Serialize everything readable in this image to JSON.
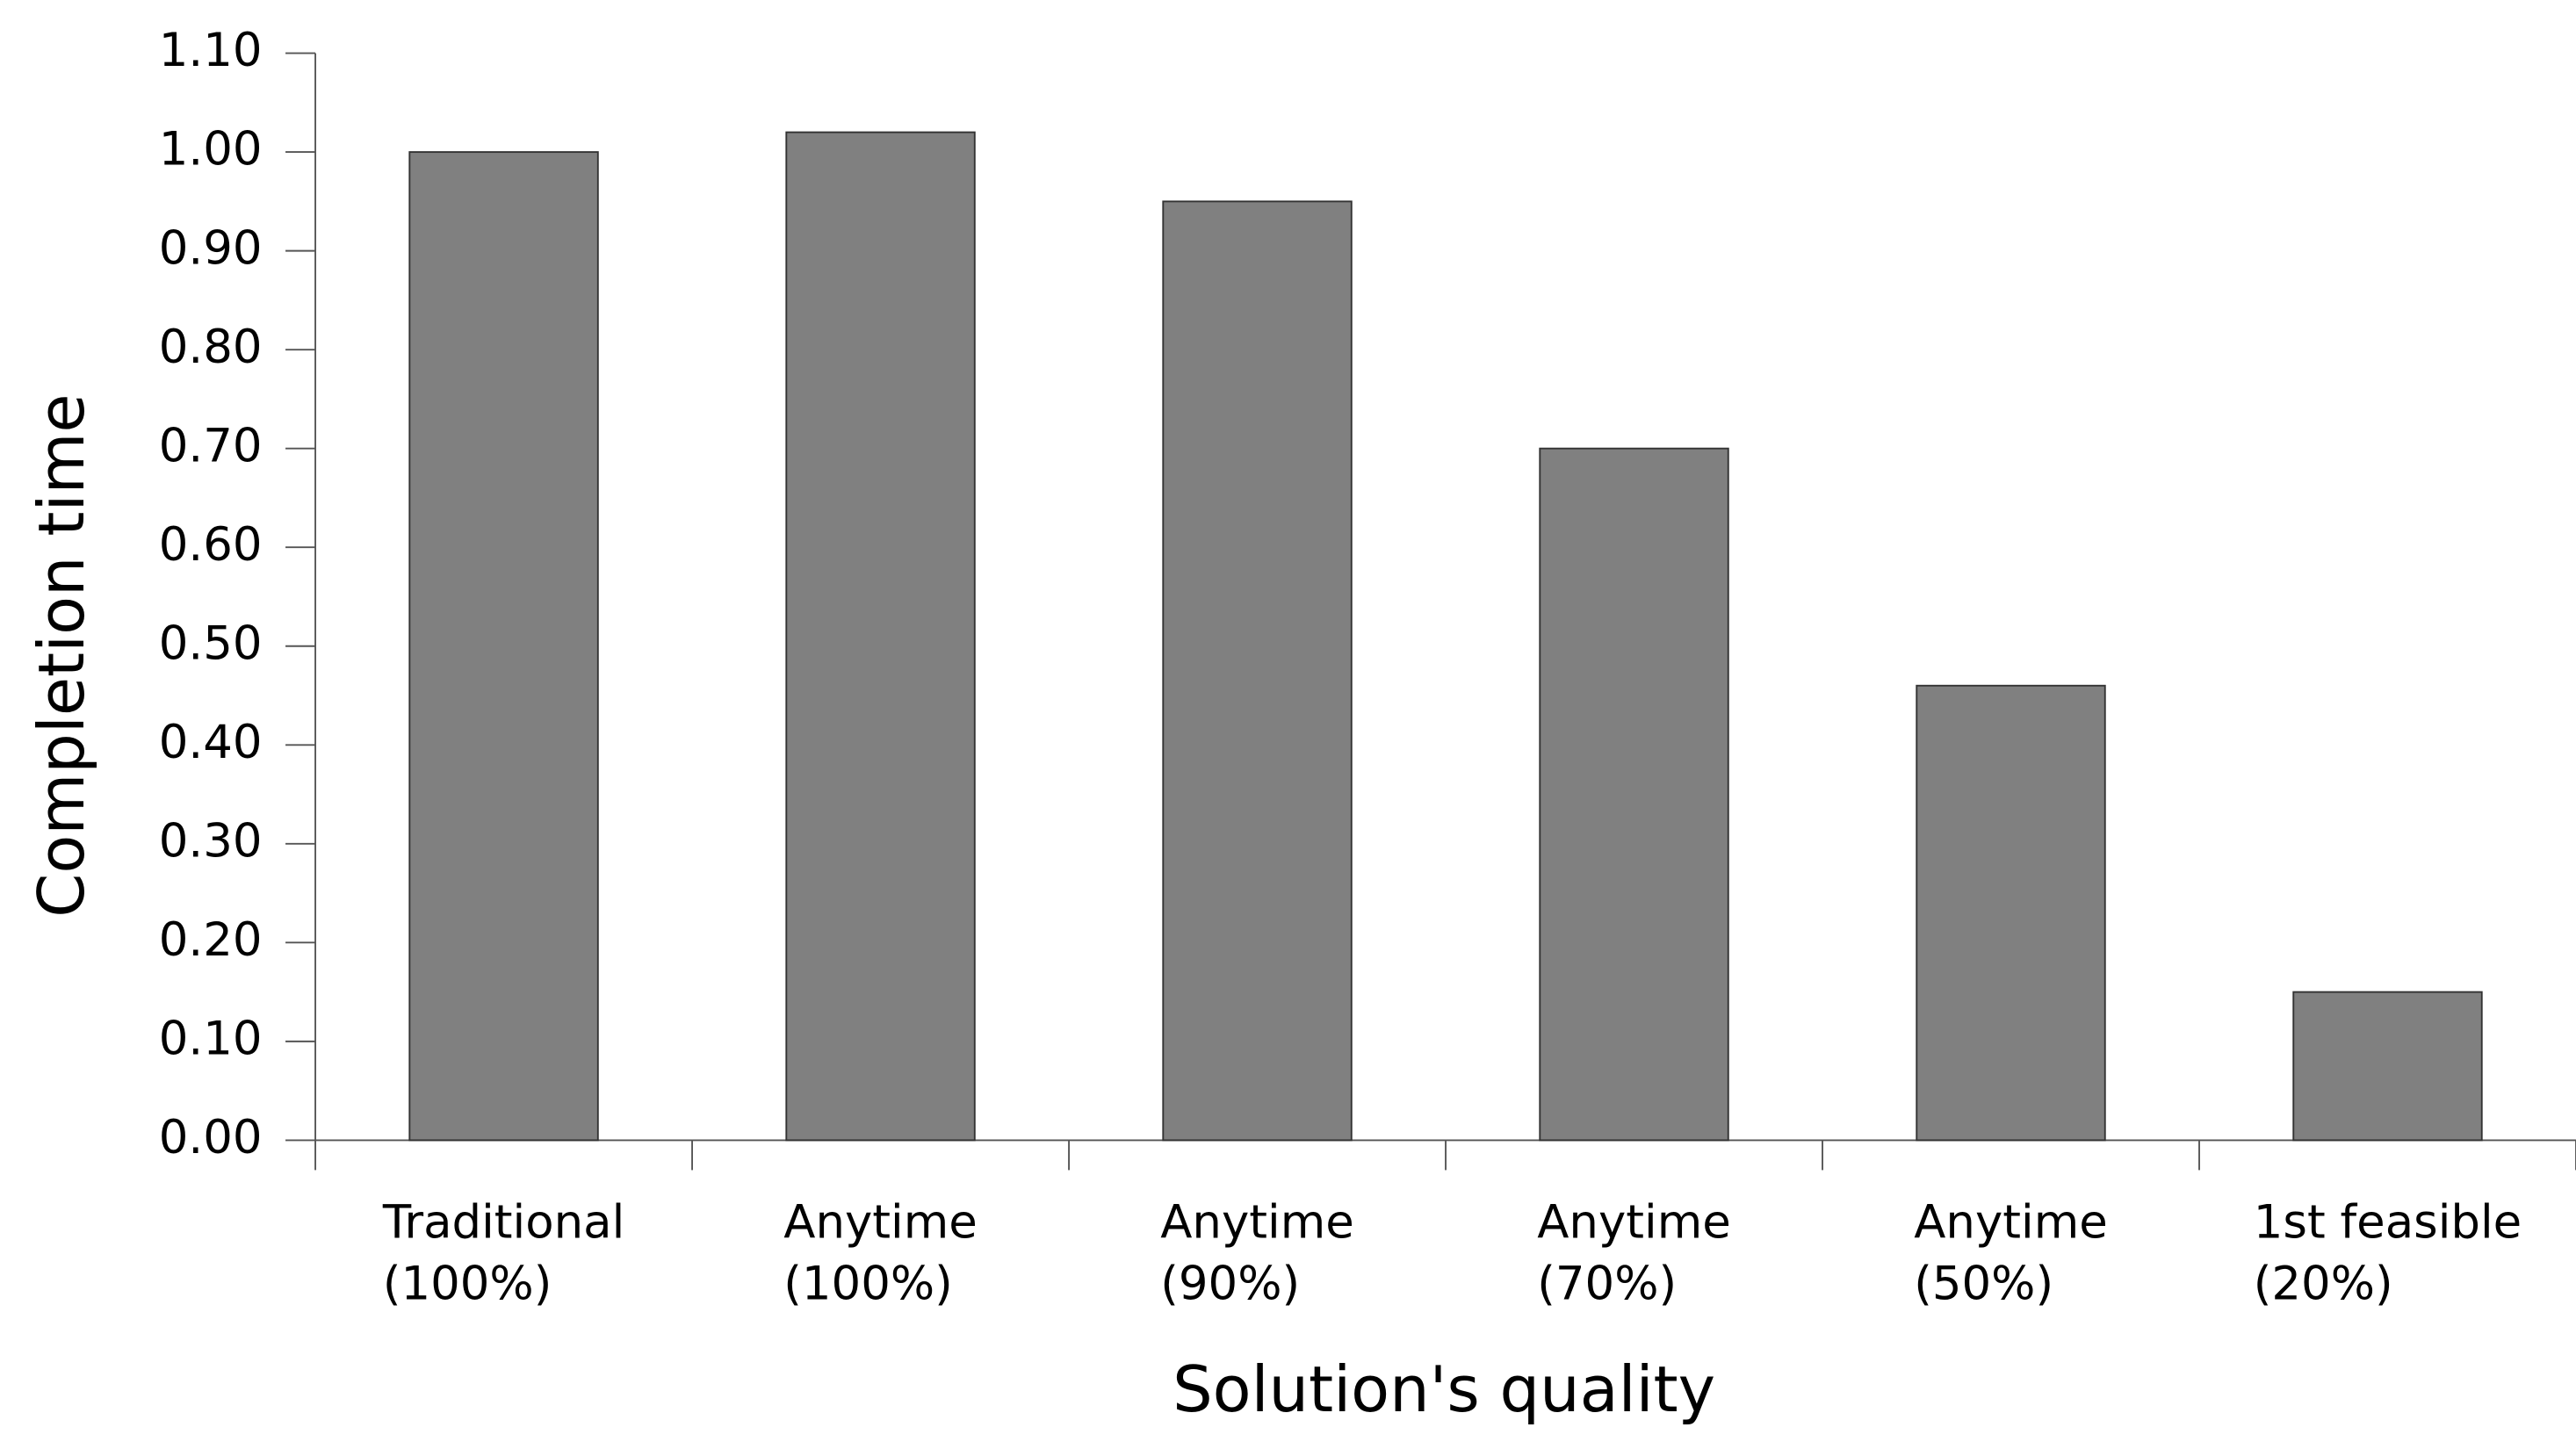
{
  "chart_data": {
    "type": "bar",
    "x_label": "Solution's quality",
    "y_label": "Completion time",
    "categories": [
      [
        "Traditional",
        "(100%)"
      ],
      [
        "Anytime",
        "(100%)"
      ],
      [
        "Anytime",
        "(90%)"
      ],
      [
        "Anytime",
        "(70%)"
      ],
      [
        "Anytime",
        "(50%)"
      ],
      [
        "1st feasible",
        "(20%)"
      ]
    ],
    "values": [
      1.0,
      1.02,
      0.95,
      0.7,
      0.46,
      0.15
    ],
    "color": "#808080",
    "ylim": [
      0,
      1.1
    ],
    "yticks": [
      {
        "value": 0,
        "label": "0.00"
      },
      {
        "value": 0.1,
        "label": "0.10"
      },
      {
        "value": 0.2,
        "label": "0.20"
      },
      {
        "value": 0.3,
        "label": "0.30"
      },
      {
        "value": 0.4,
        "label": "0.40"
      },
      {
        "value": 0.5,
        "label": "0.50"
      },
      {
        "value": 0.6,
        "label": "0.60"
      },
      {
        "value": 0.7,
        "label": "0.70"
      },
      {
        "value": 0.8,
        "label": "0.80"
      },
      {
        "value": 0.9,
        "label": "0.90"
      },
      {
        "value": 1.0,
        "label": "1.00"
      },
      {
        "value": 1.1,
        "label": "1.10"
      }
    ],
    "grid": false
  }
}
